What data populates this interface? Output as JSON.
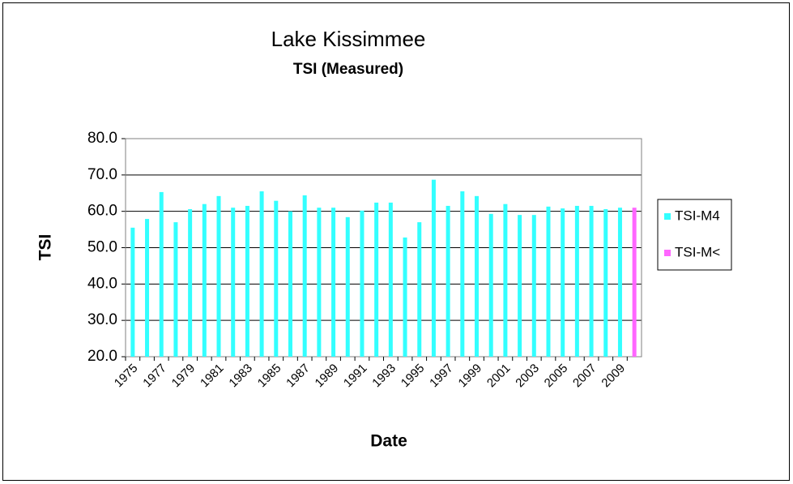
{
  "chart_data": {
    "type": "bar",
    "title": "Lake Kissimmee",
    "subtitle": "TSI (Measured)",
    "x_label": "Date",
    "y_label": "TSI",
    "categories": [
      "1975",
      null,
      "1977",
      null,
      "1979",
      null,
      "1981",
      null,
      "1983",
      null,
      "1985",
      null,
      "1987",
      null,
      "1989",
      null,
      "1991",
      null,
      "1993",
      null,
      "1995",
      null,
      "1997",
      null,
      "1999",
      null,
      "2001",
      null,
      "2003",
      null,
      "2005",
      null,
      "2007",
      null,
      "2009",
      null
    ],
    "series": [
      {
        "name": "TSI-M4",
        "color": "#33ffff",
        "values": [
          55.5,
          57.9,
          65.3,
          57.0,
          60.6,
          62.0,
          64.2,
          61.0,
          61.5,
          65.5,
          62.9,
          60.0,
          64.4,
          61.0,
          61.0,
          58.4,
          60.2,
          62.4,
          62.4,
          52.8,
          57.0,
          68.7,
          61.5,
          65.5,
          64.2,
          59.3,
          62.0,
          59.0,
          59.0,
          61.3,
          60.8,
          61.5,
          61.5,
          60.6,
          61.0,
          null
        ]
      },
      {
        "name": "TSI-M<",
        "color": "#ff66ff",
        "values": [
          null,
          null,
          null,
          null,
          null,
          null,
          null,
          null,
          null,
          null,
          null,
          null,
          null,
          null,
          null,
          null,
          null,
          null,
          null,
          null,
          null,
          null,
          null,
          null,
          null,
          null,
          null,
          null,
          null,
          null,
          null,
          null,
          null,
          null,
          null,
          61.0
        ]
      }
    ],
    "ylim": [
      20,
      80
    ],
    "yticks": [
      {
        "value": 20,
        "label": "20.0"
      },
      {
        "value": 30,
        "label": "30.0"
      },
      {
        "value": 40,
        "label": "40.0"
      },
      {
        "value": 50,
        "label": "50.0"
      },
      {
        "value": 60,
        "label": "60.0"
      },
      {
        "value": 70,
        "label": "70.0"
      },
      {
        "value": 80,
        "label": "80.0"
      }
    ],
    "grid": true,
    "legend": "right"
  }
}
